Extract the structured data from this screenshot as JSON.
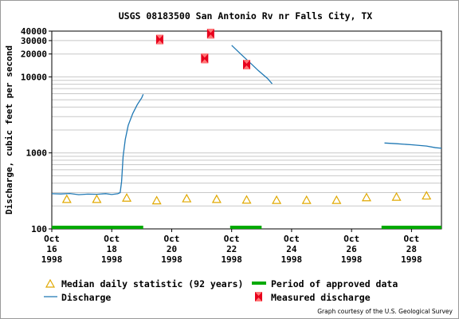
{
  "chart_data": {
    "type": "line",
    "title": "USGS 08183500 San Antonio Rv nr Falls City, TX",
    "ylabel": "Discharge, cubic feet per second",
    "yscale": "log",
    "ylim": [
      100,
      40000
    ],
    "xlim_days": [
      0,
      13
    ],
    "grid": "horizontal",
    "y_ticks": [
      "100",
      "1000",
      "10000",
      "20000",
      "30000",
      "40000"
    ],
    "x_ticks": [
      {
        "day": 0,
        "month": "Oct",
        "date": "16",
        "year": "1998"
      },
      {
        "day": 2,
        "month": "Oct",
        "date": "18",
        "year": "1998"
      },
      {
        "day": 4,
        "month": "Oct",
        "date": "20",
        "year": "1998"
      },
      {
        "day": 6,
        "month": "Oct",
        "date": "22",
        "year": "1998"
      },
      {
        "day": 8,
        "month": "Oct",
        "date": "24",
        "year": "1998"
      },
      {
        "day": 10,
        "month": "Oct",
        "date": "26",
        "year": "1998"
      },
      {
        "day": 12,
        "month": "Oct",
        "date": "28",
        "year": "1998"
      }
    ],
    "series": [
      {
        "name": "Discharge",
        "color": "#1f78b4",
        "segments": [
          [
            [
              0,
              290
            ],
            [
              0.3,
              288
            ],
            [
              0.6,
              292
            ],
            [
              0.9,
              282
            ],
            [
              1.2,
              287
            ],
            [
              1.5,
              285
            ],
            [
              1.8,
              291
            ],
            [
              2.0,
              283
            ],
            [
              2.2,
              290
            ],
            [
              2.28,
              300
            ],
            [
              2.33,
              420
            ],
            [
              2.38,
              900
            ],
            [
              2.45,
              1500
            ],
            [
              2.55,
              2300
            ],
            [
              2.7,
              3300
            ],
            [
              2.85,
              4300
            ],
            [
              3.0,
              5300
            ],
            [
              3.05,
              5900
            ]
          ],
          [
            [
              6.0,
              26000
            ],
            [
              6.3,
              20000
            ],
            [
              6.6,
              15500
            ],
            [
              6.9,
              12000
            ],
            [
              7.2,
              9500
            ],
            [
              7.35,
              8100
            ]
          ],
          [
            [
              11.1,
              1350
            ],
            [
              11.5,
              1320
            ],
            [
              12.0,
              1280
            ],
            [
              12.5,
              1230
            ],
            [
              12.8,
              1170
            ],
            [
              13.0,
              1150
            ]
          ]
        ]
      },
      {
        "name": "Median daily statistic (92 years)",
        "color": "#e0a800",
        "points": [
          [
            0.5,
            245
          ],
          [
            1.5,
            245
          ],
          [
            2.5,
            255
          ],
          [
            3.5,
            235
          ],
          [
            4.5,
            250
          ],
          [
            5.5,
            245
          ],
          [
            6.5,
            240
          ],
          [
            7.5,
            238
          ],
          [
            8.5,
            238
          ],
          [
            9.5,
            238
          ],
          [
            10.5,
            258
          ],
          [
            11.5,
            262
          ],
          [
            12.5,
            272
          ]
        ]
      },
      {
        "name": "Measured discharge",
        "color": "#e8001c",
        "points": [
          [
            3.6,
            31000
          ],
          [
            5.1,
            17500
          ],
          [
            5.3,
            37000
          ],
          [
            6.5,
            14500
          ]
        ]
      },
      {
        "name": "Period of approved data",
        "color": "#00aa00",
        "ranges": [
          [
            0,
            3.05
          ],
          [
            5.95,
            7.0
          ],
          [
            11.0,
            13.0
          ]
        ]
      }
    ],
    "legend_position": "bottom",
    "credit": "Graph courtesy of the U.S. Geological Survey"
  }
}
